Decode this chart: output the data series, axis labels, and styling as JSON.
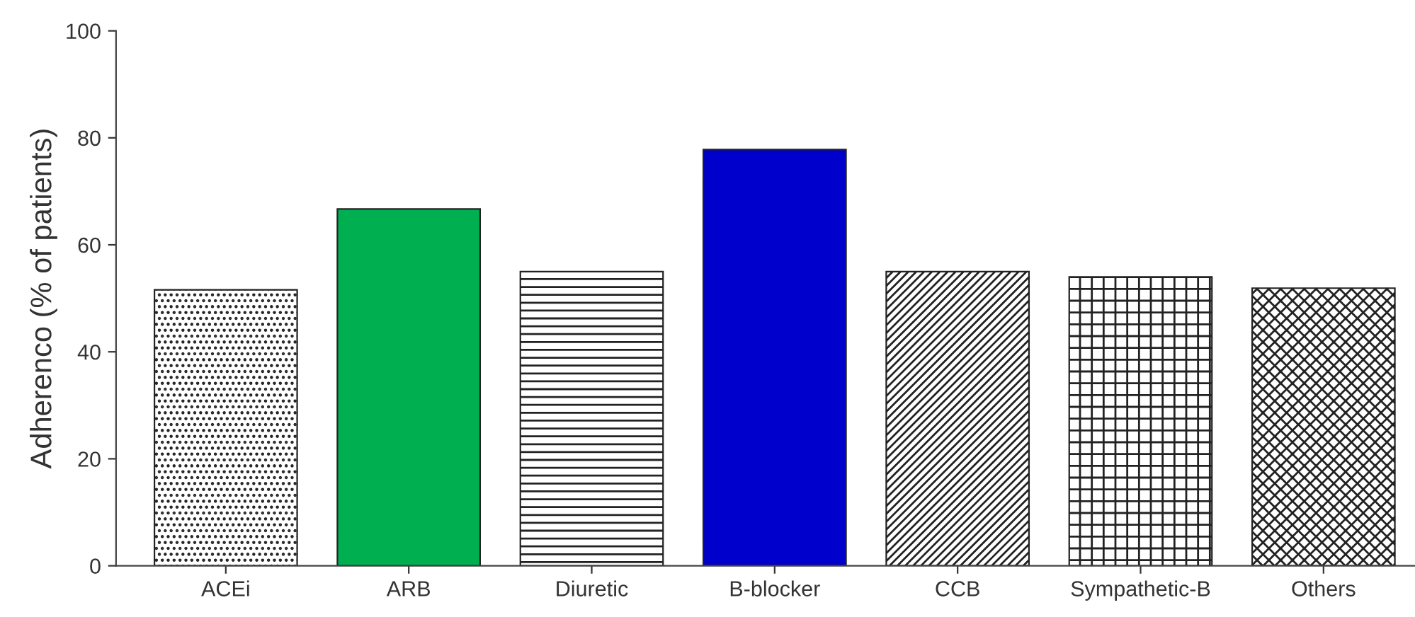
{
  "chart_data": {
    "type": "bar",
    "ylabel": "Adherenco (% of patients)",
    "categories": [
      "ACEi",
      "ARB",
      "Diuretic",
      "B-blocker",
      "CCB",
      "Sympathetic-B",
      "Others"
    ],
    "values": [
      51.6,
      66.7,
      55,
      77.8,
      55,
      54,
      51.9
    ],
    "colors": [
      "#222222",
      "#00b050",
      "#222222",
      "#0000cc",
      "#222222",
      "#222222",
      "#222222"
    ],
    "ylim": [
      0,
      100
    ],
    "yticks": [
      0,
      20,
      40,
      60,
      80,
      100
    ],
    "grid": false
  }
}
